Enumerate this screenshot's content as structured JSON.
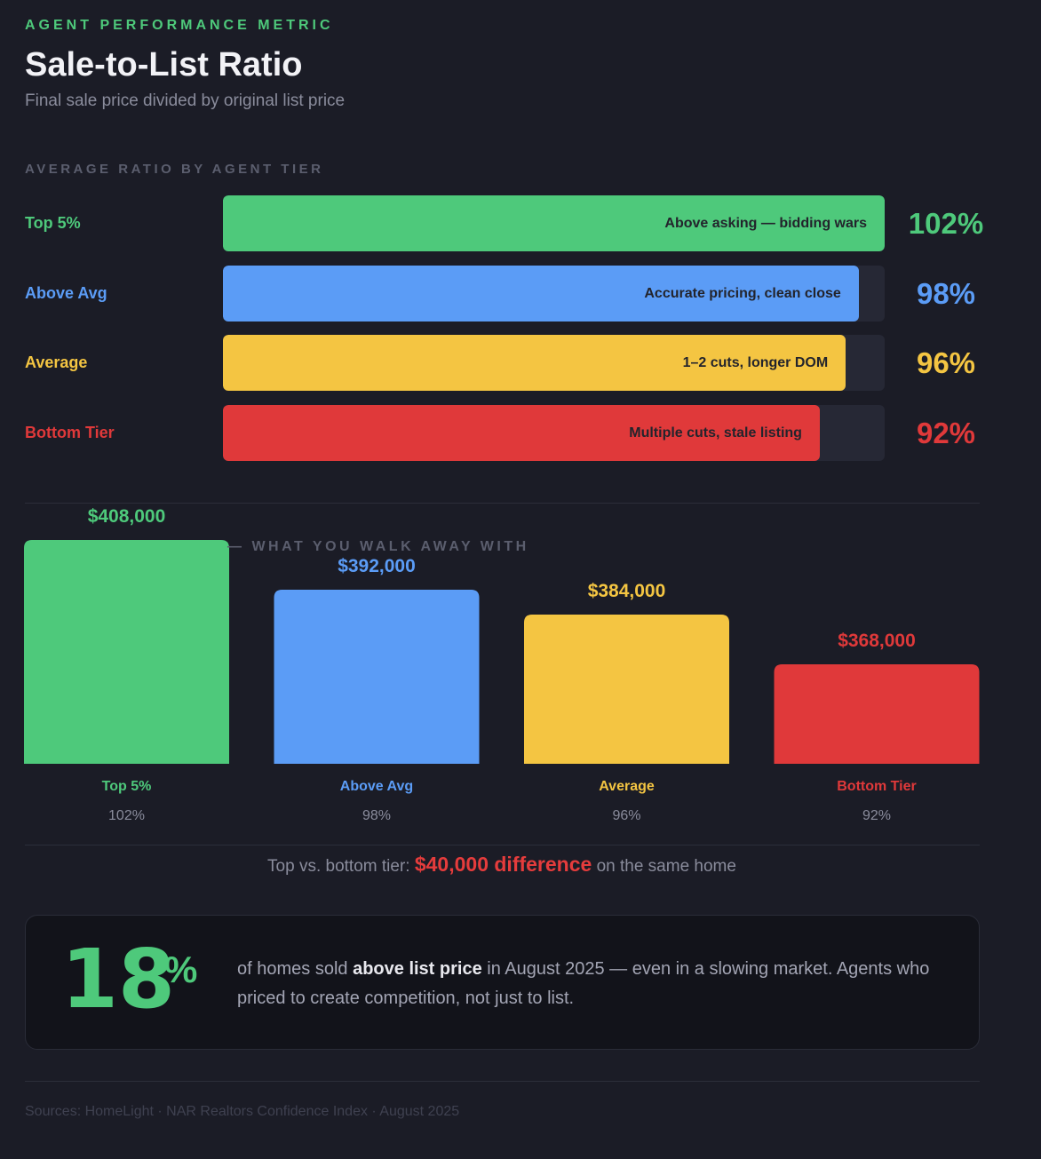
{
  "header": {
    "eyebrow": "AGENT PERFORMANCE METRIC",
    "title": "Sale-to-List Ratio",
    "subtitle": "Final sale price divided by original list price"
  },
  "ratio_section_label": "AVERAGE RATIO BY AGENT TIER",
  "walk_away_label": "— WHAT YOU WALK AWAY WITH",
  "colors": {
    "top": "#4ec97b",
    "above": "#5b9cf6",
    "average": "#f4c542",
    "bottom": "#e0393a"
  },
  "tiers": [
    {
      "name": "Top 5%",
      "ratio_label": "102%",
      "note": "Above asking — bidding wars",
      "price_label": "$408,000",
      "color": "#4ec97b"
    },
    {
      "name": "Above Avg",
      "ratio_label": "98%",
      "note": "Accurate pricing, clean close",
      "price_label": "$392,000",
      "color": "#5b9cf6"
    },
    {
      "name": "Average",
      "ratio_label": "96%",
      "note": "1–2 cuts, longer DOM",
      "price_label": "$384,000",
      "color": "#f4c542"
    },
    {
      "name": "Bottom Tier",
      "ratio_label": "92%",
      "note": "Multiple cuts, stale listing",
      "price_label": "$368,000",
      "color": "#e0393a"
    }
  ],
  "chart_data": [
    {
      "type": "bar",
      "orientation": "horizontal",
      "title": "AVERAGE RATIO BY AGENT TIER",
      "categories": [
        "Top 5%",
        "Above Avg",
        "Average",
        "Bottom Tier"
      ],
      "values": [
        102,
        98,
        96,
        92
      ],
      "unit": "%",
      "xlim": [
        0,
        102
      ]
    },
    {
      "type": "bar",
      "orientation": "vertical",
      "title": "WHAT YOU WALK AWAY WITH",
      "categories": [
        "Top 5%",
        "Above Avg",
        "Average",
        "Bottom Tier"
      ],
      "values": [
        408000,
        392000,
        384000,
        368000
      ],
      "ratios": [
        "102%",
        "98%",
        "96%",
        "92%"
      ],
      "unit": "$"
    }
  ],
  "difference": {
    "prefix": "Top vs. bottom tier:",
    "highlight": "$40,000 difference",
    "suffix": "on the same home"
  },
  "callout": {
    "number": "18",
    "percent_sign": "%",
    "text_pre": "of homes sold",
    "text_strong": "above list price",
    "text_post": "in August 2025 — even in a slowing market. Agents who priced to create competition, not just to list."
  },
  "footer": "Sources: HomeLight · NAR Realtors Confidence Index · August 2025"
}
